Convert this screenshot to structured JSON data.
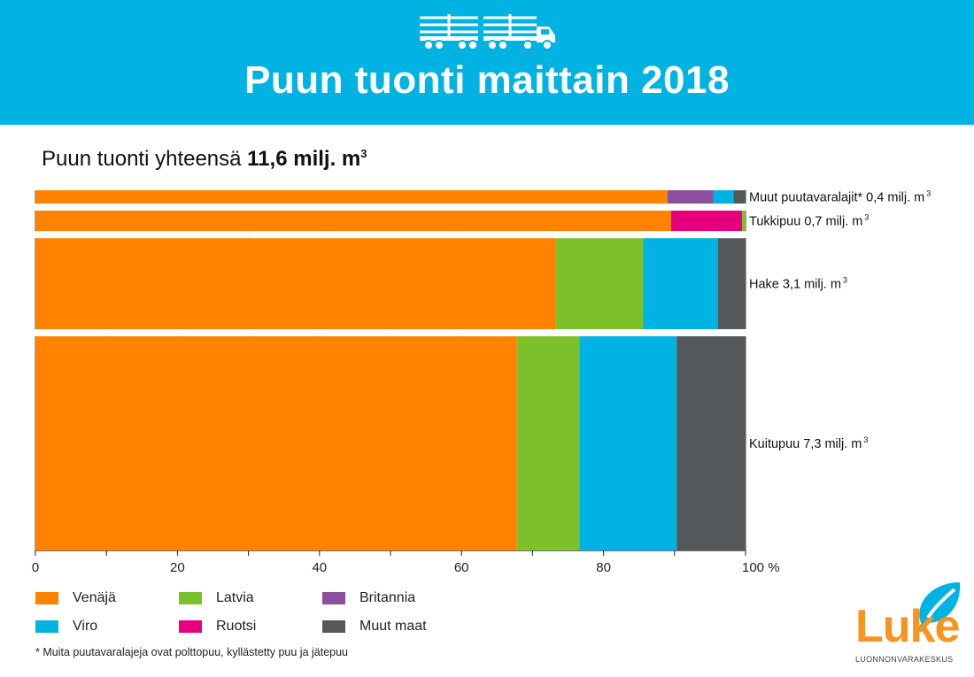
{
  "header": {
    "title": "Puun tuonti maittain 2018"
  },
  "subtitle": {
    "prefix": "Puun tuonti yhteensä ",
    "value": "11,6 milj. m",
    "sup": "3"
  },
  "chart_data": {
    "type": "bar",
    "orientation": "horizontal",
    "stacked": true,
    "title": "Puun tuonti yhteensä 11,6 milj. m³",
    "xlim": [
      0,
      100
    ],
    "xticks": [
      "0",
      "20",
      "40",
      "60",
      "80",
      "100 %"
    ],
    "grid": true,
    "legend_position": "bottom-left",
    "categories": [
      {
        "label": "Muut puutavaralajit* 0,4 milj. m",
        "sup": "3",
        "volume": 0.4
      },
      {
        "label": "Tukkipuu 0,7 milj. m",
        "sup": "3",
        "volume": 0.7
      },
      {
        "label": "Hake 3,1 milj. m",
        "sup": "3",
        "volume": 3.1
      },
      {
        "label": "Kuitupuu 7,3 milj. m",
        "sup": "3",
        "volume": 7.3
      }
    ],
    "series": [
      {
        "name": "Venäjä",
        "color": "#ff8200",
        "values": [
          89.0,
          89.5,
          73.3,
          67.8
        ]
      },
      {
        "name": "Britannia",
        "color": "#8a4f9e",
        "values": [
          6.5,
          0,
          0,
          0
        ]
      },
      {
        "name": "Ruotsi",
        "color": "#e6007e",
        "values": [
          0,
          10.0,
          0,
          0
        ]
      },
      {
        "name": "Latvia",
        "color": "#7dc12a",
        "values": [
          0,
          0.5,
          12.3,
          8.8
        ]
      },
      {
        "name": "Viro",
        "color": "#00b3e3",
        "values": [
          2.8,
          0,
          10.5,
          13.7
        ]
      },
      {
        "name": "Muut maat",
        "color": "#54585a",
        "values": [
          1.7,
          0,
          3.9,
          9.7
        ]
      }
    ]
  },
  "legend": [
    {
      "name": "Venäjä",
      "color": "#ff8200"
    },
    {
      "name": "Viro",
      "color": "#00b3e3"
    },
    {
      "name": "Latvia",
      "color": "#7dc12a"
    },
    {
      "name": "Ruotsi",
      "color": "#e6007e"
    },
    {
      "name": "Britannia",
      "color": "#8a4f9e"
    },
    {
      "name": "Muut maat",
      "color": "#54585a"
    }
  ],
  "footnote": "* Muita puutavaralajeja ovat polttopuu, kyllästetty puu ja jätepuu",
  "logo": {
    "name": "Luke",
    "subtitle": "LUONNONVARAKESKUS"
  }
}
